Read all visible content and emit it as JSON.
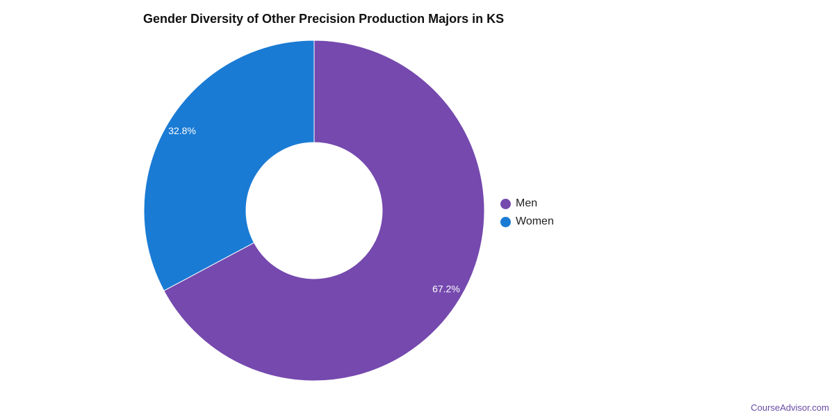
{
  "chart_data": {
    "type": "pie",
    "title": "Gender Diversity of Other Precision Production Majors in KS",
    "slices": [
      {
        "name": "Men",
        "value": 67.2,
        "label": "67.2%",
        "color": "#7549ae"
      },
      {
        "name": "Women",
        "value": 32.8,
        "label": "32.8%",
        "color": "#1a7bd4"
      }
    ],
    "donut": true,
    "legend_position": "right"
  },
  "legend": {
    "items": [
      {
        "label": "Men",
        "color": "#7549ae"
      },
      {
        "label": "Women",
        "color": "#1a7bd4"
      }
    ]
  },
  "footer": {
    "source": "CourseAdvisor.com"
  }
}
